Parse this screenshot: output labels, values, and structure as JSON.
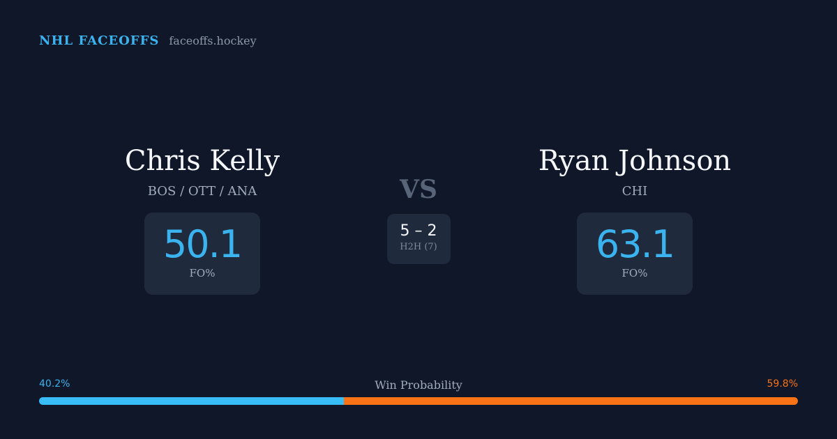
{
  "brand": {
    "title": "NHL FACEOFFS",
    "domain": "faceoffs.hockey"
  },
  "players": {
    "left": {
      "name": "Chris Kelly",
      "teams": "BOS / OTT / ANA",
      "fo_pct": "50.1",
      "fo_label": "FO%"
    },
    "right": {
      "name": "Ryan Johnson",
      "teams": "CHI",
      "fo_pct": "63.1",
      "fo_label": "FO%"
    }
  },
  "matchup": {
    "vs_label": "VS",
    "h2h_score": "5 – 2",
    "h2h_label": "H2H (7)"
  },
  "win_probability": {
    "title": "Win Probability",
    "left_pct_label": "40.2%",
    "right_pct_label": "59.8%",
    "left_fraction": 0.402,
    "right_fraction": 0.598,
    "left_color": "#38bdf8",
    "right_color": "#f97316"
  },
  "colors": {
    "background": "#0f1729",
    "accent_blue": "#3bb3ee",
    "accent_orange": "#f97316",
    "card": "#1f2a3d"
  }
}
